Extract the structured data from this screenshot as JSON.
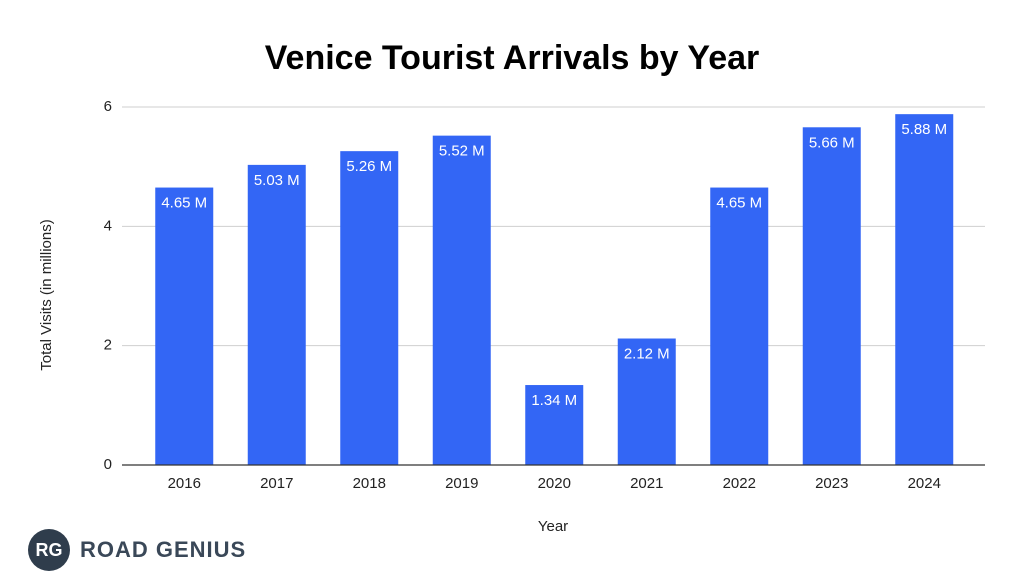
{
  "chart_data": {
    "type": "bar",
    "title": "Venice Tourist Arrivals by Year",
    "x_label": "Year",
    "y_label": "Total Visits (in millions)",
    "categories": [
      "2016",
      "2017",
      "2018",
      "2019",
      "2020",
      "2021",
      "2022",
      "2023",
      "2024"
    ],
    "values": [
      4.65,
      5.03,
      5.26,
      5.52,
      1.34,
      2.12,
      4.65,
      5.66,
      5.88
    ],
    "value_labels": [
      "4.65 M",
      "5.03 M",
      "5.26 M",
      "5.52 M",
      "1.34 M",
      "2.12 M",
      "4.65 M",
      "5.66 M",
      "5.88 M"
    ],
    "color": "#3366f5",
    "ylim": [
      0,
      6
    ],
    "yticks": [
      0,
      2,
      4,
      6
    ],
    "grid": true
  },
  "logo": {
    "initials": "RG",
    "name": "ROAD GENIUS"
  }
}
